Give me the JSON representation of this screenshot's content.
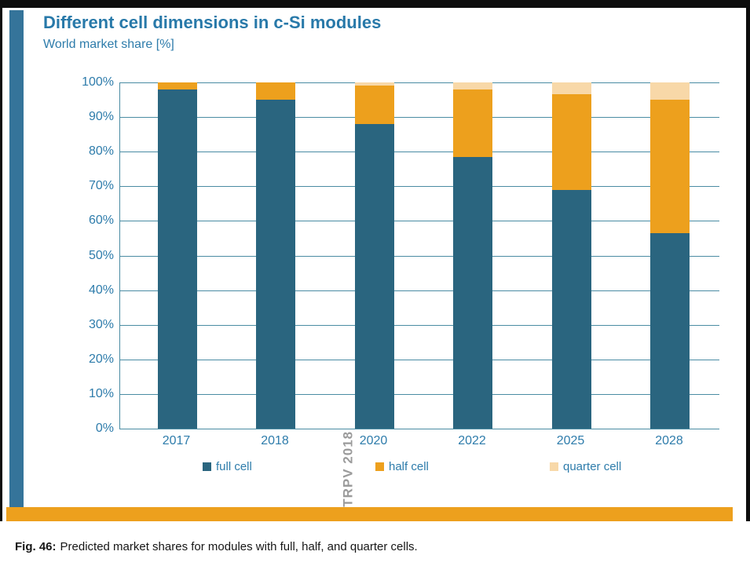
{
  "panel": {
    "title": "Different cell dimensions in c-Si modules",
    "subtitle": "World market share [%]"
  },
  "chart_data": {
    "type": "bar",
    "stacked": true,
    "title": "Different cell dimensions in c-Si modules",
    "ylabel": "World market share [%]",
    "categories": [
      "2017",
      "2018",
      "2020",
      "2022",
      "2025",
      "2028"
    ],
    "series": [
      {
        "name": "full cell",
        "color": "#2a657f",
        "values": [
          98,
          95,
          88,
          78.5,
          69,
          56.5
        ]
      },
      {
        "name": "half cell",
        "color": "#eda01d",
        "values": [
          2,
          5,
          11,
          19.5,
          27.5,
          38.5
        ]
      },
      {
        "name": "quarter cell",
        "color": "#f8d8a8",
        "values": [
          0,
          0,
          1,
          2,
          3.5,
          5
        ]
      }
    ],
    "ylim": [
      0,
      100
    ],
    "y_ticks": [
      "0%",
      "10%",
      "20%",
      "30%",
      "40%",
      "50%",
      "60%",
      "70%",
      "80%",
      "90%",
      "100%"
    ],
    "grid": true,
    "legend_position": "bottom",
    "watermark": "ITRPV 2018"
  },
  "caption": {
    "label": "Fig. 46:",
    "text": "Predicted market shares for modules with full, half, and quarter cells."
  },
  "colors": {
    "accent_left_bar": "#35749a",
    "bottom_bar": "#eda01d",
    "axis": "#4a8ca3",
    "label_blue": "#2e7cab",
    "watermark_gray": "#9b9b9b",
    "frame_black": "#0d0d0d"
  }
}
